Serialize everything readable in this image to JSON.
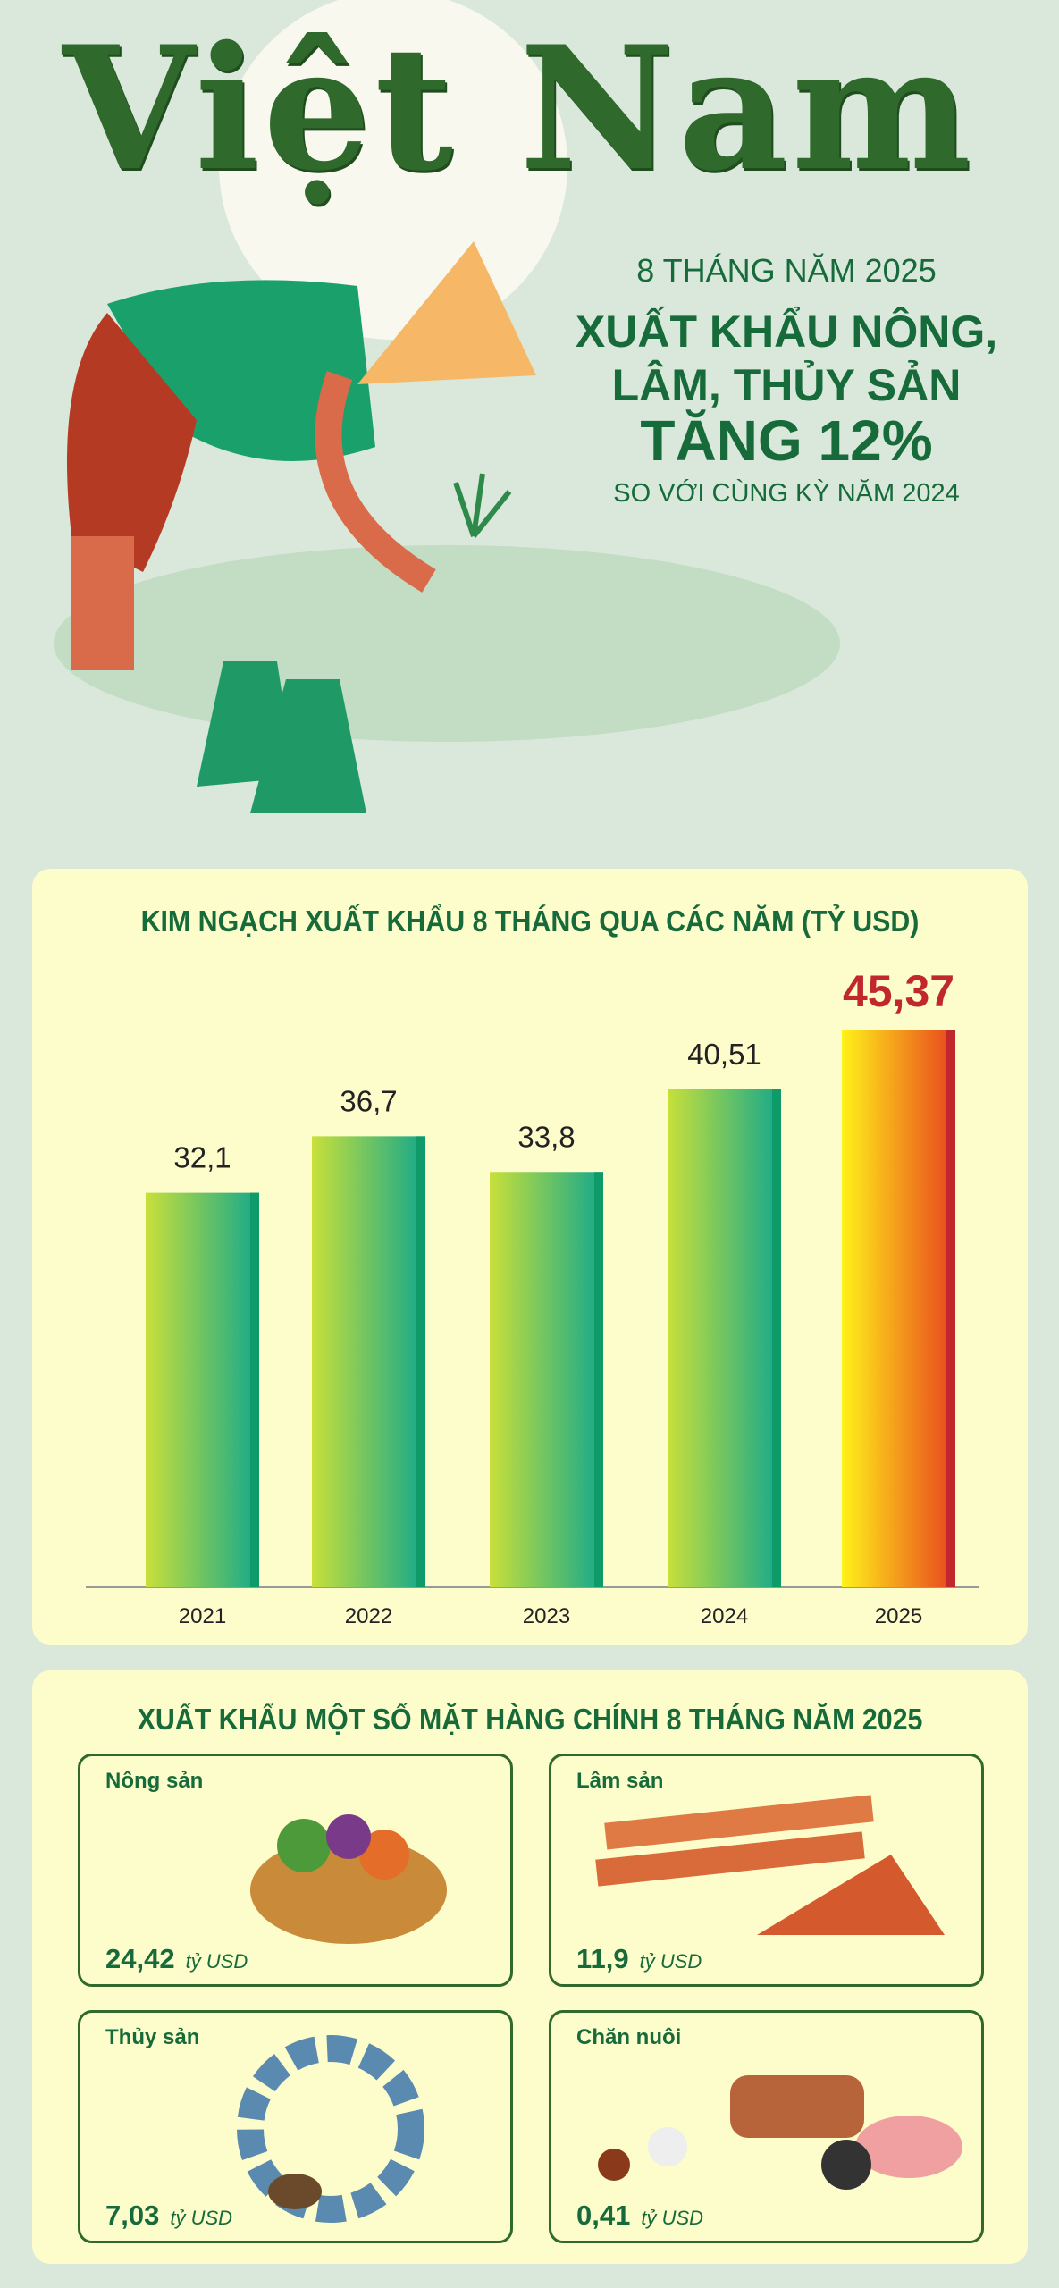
{
  "header": {
    "brand": "Việt Nam",
    "line1": "8 THÁNG NĂM 2025",
    "line2": "XUẤT KHẨU NÔNG,",
    "line3": "LÂM, THỦY SẢN",
    "line4": "TĂNG 12%",
    "line5": "SO VỚI CÙNG KỲ NĂM 2024"
  },
  "chart_data": {
    "type": "bar",
    "title": "KIM NGẠCH XUẤT KHẨU 8 THÁNG QUA CÁC NĂM (TỶ USD)",
    "categories": [
      "2021",
      "2022",
      "2023",
      "2024",
      "2025"
    ],
    "values": [
      32.1,
      36.7,
      33.8,
      40.51,
      45.37
    ],
    "labels": [
      "32,1",
      "36,7",
      "33,8",
      "40,51",
      "45,37"
    ],
    "highlight": "2025",
    "colors": {
      "normal": [
        "#c8e03a",
        "#14a88c"
      ],
      "highlight": [
        "#fff21a",
        "#e8431e"
      ],
      "highlight_label": "#c0282d"
    },
    "grid": false
  },
  "items_section": {
    "title": "XUẤT KHẨU MỘT SỐ MẶT HÀNG CHÍNH 8 THÁNG NĂM 2025",
    "items": [
      {
        "name": "Nông sản",
        "value": "24,42",
        "unit": "tỷ USD",
        "icon": "vegetable-basket-icon"
      },
      {
        "name": "Lâm sản",
        "value": "11,9",
        "unit": "tỷ USD",
        "icon": "wood-planks-icon"
      },
      {
        "name": "Thủy sản",
        "value": "7,03",
        "unit": "tỷ USD",
        "icon": "fish-icon"
      },
      {
        "name": "Chăn nuôi",
        "value": "0,41",
        "unit": "tỷ USD",
        "icon": "livestock-icon"
      }
    ]
  }
}
